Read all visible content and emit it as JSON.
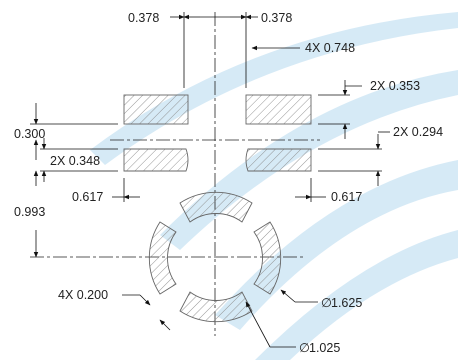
{
  "background": "#ffffff",
  "colors": {
    "band": "#cfe6f5",
    "line": "#111111",
    "hatch": "#888888"
  },
  "dimensions": {
    "top_left": "0.378",
    "top_right": "0.378",
    "width_4x": "4X 0.748",
    "height_2x_right": "2X 0.353",
    "left_0300": "0.300",
    "gap_2x_right": "2X 0.294",
    "left_2x": "2X 0.348",
    "left_0617": "0.617",
    "right_0617": "0.617",
    "left_0993": "0.993",
    "slot_4x": "4X 0.200",
    "diameter_outer": "1.625",
    "diameter_inner": "1.025"
  },
  "symbols": {
    "diameter": "∅"
  }
}
